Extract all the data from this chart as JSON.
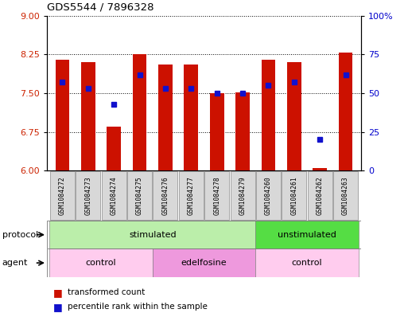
{
  "title": "GDS5544 / 7896328",
  "samples": [
    "GSM1084272",
    "GSM1084273",
    "GSM1084274",
    "GSM1084275",
    "GSM1084276",
    "GSM1084277",
    "GSM1084278",
    "GSM1084279",
    "GSM1084260",
    "GSM1084261",
    "GSM1084262",
    "GSM1084263"
  ],
  "bar_values": [
    8.15,
    8.1,
    6.85,
    8.25,
    8.05,
    8.05,
    7.5,
    7.52,
    8.15,
    8.1,
    6.05,
    8.28
  ],
  "percentile_values": [
    57,
    53,
    43,
    62,
    53,
    53,
    50,
    50,
    55,
    57,
    20,
    62
  ],
  "ymin": 6,
  "ymax": 9,
  "yticks": [
    6,
    6.75,
    7.5,
    8.25,
    9
  ],
  "right_yticks": [
    0,
    25,
    50,
    75,
    100
  ],
  "right_yticklabels": [
    "0",
    "25",
    "50",
    "75",
    "100%"
  ],
  "bar_color": "#cc1100",
  "dot_color": "#1111cc",
  "bar_width": 0.55,
  "protocol_groups": [
    {
      "label": "stimulated",
      "start": 0,
      "end": 8,
      "color": "#bbeeaa"
    },
    {
      "label": "unstimulated",
      "start": 8,
      "end": 12,
      "color": "#55dd44"
    }
  ],
  "agent_groups": [
    {
      "label": "control",
      "start": 0,
      "end": 4,
      "color": "#ffccee"
    },
    {
      "label": "edelfosine",
      "start": 4,
      "end": 8,
      "color": "#ee99dd"
    },
    {
      "label": "control",
      "start": 8,
      "end": 12,
      "color": "#ffccee"
    }
  ],
  "legend_bar_color": "#cc1100",
  "legend_dot_color": "#1111cc",
  "tick_label_color_left": "#cc2200",
  "tick_label_color_right": "#0000cc"
}
